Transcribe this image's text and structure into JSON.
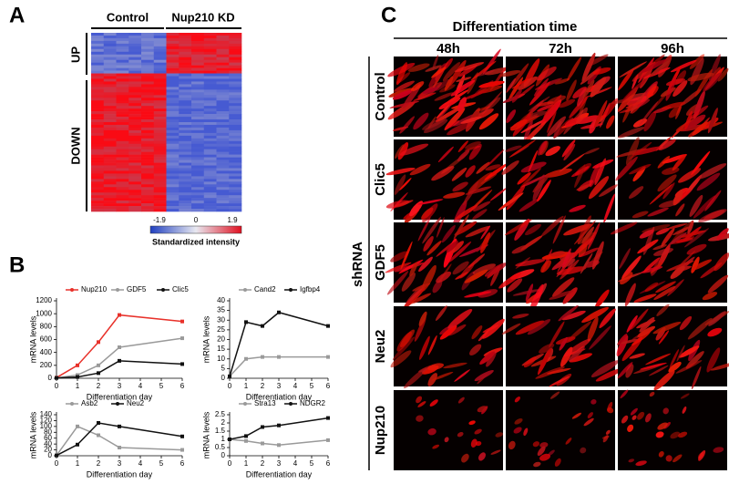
{
  "panel_labels": [
    "A",
    "B",
    "C"
  ],
  "panel_a": {
    "groups": [
      "Control",
      "Nup210 KD"
    ],
    "clusters": [
      "UP",
      "DOWN"
    ],
    "colorbar_ticks": [
      "-1.9",
      "0",
      "1.9"
    ],
    "colorbar_label": "Standardized intensity"
  },
  "panel_c": {
    "title": "Differentiation time",
    "columns": [
      "48h",
      "72h",
      "96h"
    ],
    "group_label": "shRNA",
    "rows": [
      "Control",
      "Clic5",
      "GDF5",
      "Neu2",
      "Nup210"
    ]
  },
  "chart_data": [
    {
      "type": "line",
      "x": [
        0,
        1,
        2,
        3,
        6
      ],
      "xlim": [
        0,
        6
      ],
      "xticks": [
        0,
        1,
        2,
        3,
        4,
        5,
        6
      ],
      "ylim": [
        0,
        1200
      ],
      "yticks": [
        0,
        200,
        400,
        600,
        800,
        1000,
        1200
      ],
      "x_label": "Differentiation day",
      "y_label": "mRNA levels",
      "series": [
        {
          "name": "Nup210",
          "color": "#e8312a",
          "values": [
            10,
            200,
            560,
            980,
            880
          ]
        },
        {
          "name": "GDF5",
          "color": "#9a9a9a",
          "values": [
            5,
            50,
            200,
            480,
            620
          ]
        },
        {
          "name": "Clic5",
          "color": "#111111",
          "values": [
            5,
            20,
            80,
            270,
            220
          ]
        }
      ]
    },
    {
      "type": "line",
      "x": [
        0,
        1,
        2,
        3,
        6
      ],
      "xlim": [
        0,
        6
      ],
      "xticks": [
        0,
        1,
        2,
        3,
        4,
        5,
        6
      ],
      "ylim": [
        0,
        40
      ],
      "yticks": [
        0,
        5,
        10,
        15,
        20,
        25,
        30,
        35,
        40
      ],
      "x_label": "Differentiation day",
      "y_label": "mRNA levels",
      "series": [
        {
          "name": "Cand2",
          "color": "#9a9a9a",
          "values": [
            1,
            10,
            11,
            11,
            11
          ]
        },
        {
          "name": "Igfbp4",
          "color": "#111111",
          "values": [
            1,
            29,
            27,
            34,
            27
          ]
        }
      ]
    },
    {
      "type": "line",
      "x": [
        0,
        1,
        2,
        3,
        6
      ],
      "xlim": [
        0,
        6
      ],
      "xticks": [
        0,
        1,
        2,
        3,
        4,
        5,
        6
      ],
      "ylim": [
        0,
        140
      ],
      "yticks": [
        0,
        20,
        40,
        60,
        80,
        100,
        120,
        140
      ],
      "x_label": "Differentiation day",
      "y_label": "mRNA levels",
      "series": [
        {
          "name": "Asb2",
          "color": "#9a9a9a",
          "values": [
            1,
            100,
            70,
            28,
            20
          ]
        },
        {
          "name": "Neu2",
          "color": "#111111",
          "values": [
            1,
            38,
            112,
            100,
            66
          ]
        }
      ]
    },
    {
      "type": "line",
      "x": [
        0,
        1,
        2,
        3,
        6
      ],
      "xlim": [
        0,
        6
      ],
      "xticks": [
        0,
        1,
        2,
        3,
        4,
        5,
        6
      ],
      "ylim": [
        0,
        2.5
      ],
      "yticks": [
        0,
        0.5,
        1,
        1.5,
        2,
        2.5
      ],
      "x_label": "Differentiation day",
      "y_label": "mRNA levels",
      "series": [
        {
          "name": "Stra13",
          "color": "#9a9a9a",
          "values": [
            1,
            0.9,
            0.75,
            0.65,
            0.95
          ]
        },
        {
          "name": "NDGR2",
          "color": "#111111",
          "values": [
            1,
            1.2,
            1.75,
            1.85,
            2.3
          ]
        }
      ]
    }
  ]
}
